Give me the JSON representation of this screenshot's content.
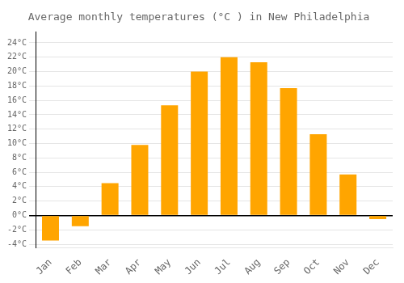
{
  "chart_data": {
    "type": "bar",
    "title": "Average monthly temperatures (°C ) in New Philadelphia",
    "categories": [
      "Jan",
      "Feb",
      "Mar",
      "Apr",
      "May",
      "Jun",
      "Jul",
      "Aug",
      "Sep",
      "Oct",
      "Nov",
      "Dec"
    ],
    "values": [
      -3.5,
      -1.5,
      4.5,
      9.8,
      15.3,
      20.0,
      22.0,
      21.3,
      17.7,
      11.3,
      5.7,
      -0.5
    ],
    "color": "#FFA500",
    "ylim": [
      -4.5,
      25.5
    ],
    "yticks": [
      {
        "value": -4,
        "label": "-4°C"
      },
      {
        "value": -2,
        "label": "-2°C"
      },
      {
        "value": 0,
        "label": "0°C"
      },
      {
        "value": 2,
        "label": "2°C"
      },
      {
        "value": 4,
        "label": "4°C"
      },
      {
        "value": 6,
        "label": "6°C"
      },
      {
        "value": 8,
        "label": "8°C"
      },
      {
        "value": 10,
        "label": "10°C"
      },
      {
        "value": 12,
        "label": "12°C"
      },
      {
        "value": 14,
        "label": "14°C"
      },
      {
        "value": 16,
        "label": "16°C"
      },
      {
        "value": 18,
        "label": "18°C"
      },
      {
        "value": 20,
        "label": "20°C"
      },
      {
        "value": 22,
        "label": "22°C"
      },
      {
        "value": 24,
        "label": "24°C"
      }
    ],
    "grid": true
  }
}
